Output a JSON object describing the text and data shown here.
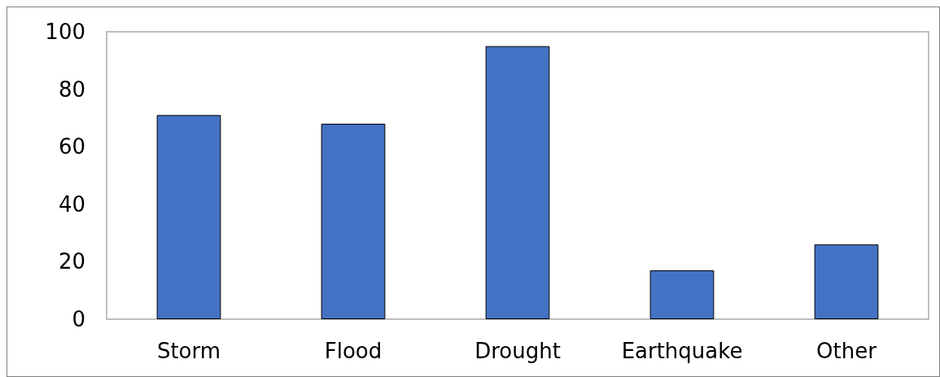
{
  "chart_data": {
    "type": "bar",
    "categories": [
      "Storm",
      "Flood",
      "Drought",
      "Earthquake",
      "Other"
    ],
    "values": [
      71,
      68,
      95,
      17,
      26
    ],
    "color": "#4472c4",
    "ylim": [
      0,
      100
    ],
    "yticks": [
      0,
      20,
      40,
      60,
      80,
      100
    ],
    "grid": false
  }
}
